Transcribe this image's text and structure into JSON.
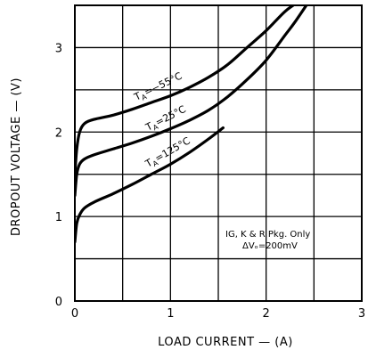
{
  "chart_data": {
    "type": "line",
    "xlabel": "LOAD CURRENT — (A)",
    "ylabel": "DROPOUT VOLTAGE — (V)",
    "xlim": [
      0,
      3
    ],
    "ylim": [
      0,
      3.5
    ],
    "grid": true,
    "x_ticks": [
      "0",
      "1",
      "2",
      "3"
    ],
    "y_ticks": [
      "0",
      "1",
      "2",
      "3"
    ],
    "note_lines": [
      "IG, K & R Pkg. Only",
      "ΔVₒ=200mV"
    ],
    "series": [
      {
        "name": "TA=−55°C",
        "label_main": "T",
        "label_sub": "A",
        "label_rest": "=−55°C",
        "x": [
          0,
          0.02,
          0.05,
          0.1,
          0.2,
          0.4,
          0.6,
          0.8,
          1.0,
          1.2,
          1.4,
          1.6,
          1.8,
          2.0,
          2.2,
          2.35
        ],
        "y": [
          1.5,
          1.8,
          2.0,
          2.1,
          2.15,
          2.2,
          2.27,
          2.35,
          2.43,
          2.53,
          2.65,
          2.8,
          3.0,
          3.2,
          3.43,
          3.55
        ]
      },
      {
        "name": "TA=25°C",
        "label_main": "T",
        "label_sub": "A",
        "label_rest": "=25°C",
        "x": [
          0,
          0.02,
          0.05,
          0.1,
          0.2,
          0.4,
          0.6,
          0.8,
          1.0,
          1.2,
          1.4,
          1.6,
          1.8,
          2.0,
          2.2,
          2.3,
          2.45
        ],
        "y": [
          1.25,
          1.5,
          1.62,
          1.68,
          1.73,
          1.8,
          1.87,
          1.95,
          2.04,
          2.14,
          2.26,
          2.42,
          2.62,
          2.85,
          3.15,
          3.3,
          3.55
        ]
      },
      {
        "name": "TA=125°C",
        "label_main": "T",
        "label_sub": "A",
        "label_rest": "=125°C",
        "x": [
          0,
          0.02,
          0.05,
          0.1,
          0.2,
          0.4,
          0.6,
          0.8,
          1.0,
          1.2,
          1.4,
          1.55
        ],
        "y": [
          0.7,
          0.92,
          1.02,
          1.1,
          1.17,
          1.27,
          1.38,
          1.5,
          1.62,
          1.76,
          1.92,
          2.05
        ]
      }
    ]
  }
}
